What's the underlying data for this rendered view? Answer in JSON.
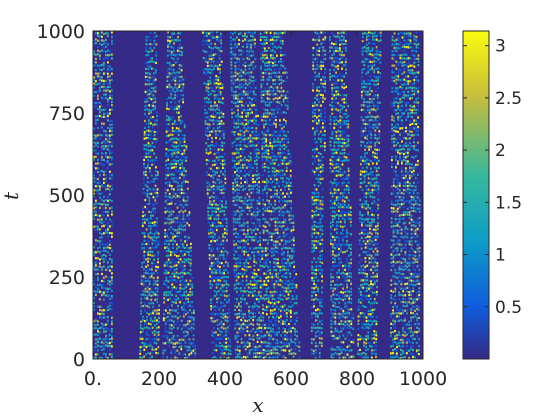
{
  "chart_data": {
    "type": "heatmap",
    "title": "",
    "xlabel": "x",
    "ylabel": "t",
    "xlim": [
      0,
      1000
    ],
    "ylim": [
      0,
      1000
    ],
    "x_ticks": [
      {
        "value": 0,
        "label": "0."
      },
      {
        "value": 200,
        "label": "200"
      },
      {
        "value": 400,
        "label": "400"
      },
      {
        "value": 600,
        "label": "600"
      },
      {
        "value": 800,
        "label": "800"
      },
      {
        "value": 1000,
        "label": "1000"
      }
    ],
    "y_ticks": [
      {
        "value": 0,
        "label": "0"
      },
      {
        "value": 250,
        "label": "250"
      },
      {
        "value": 500,
        "label": "500"
      },
      {
        "value": 750,
        "label": "750"
      },
      {
        "value": 1000,
        "label": "1000"
      }
    ],
    "colorbar": {
      "colormap": "parula",
      "range": [
        0,
        3.14
      ],
      "ticks": [
        {
          "value": 0.5,
          "label": "0.5"
        },
        {
          "value": 1,
          "label": "1"
        },
        {
          "value": 1.5,
          "label": "1.5"
        },
        {
          "value": 2,
          "label": "2"
        },
        {
          "value": 2.5,
          "label": "2.5"
        },
        {
          "value": 3,
          "label": "3"
        }
      ]
    },
    "background_value": 0,
    "colors": {
      "background": "#352a87",
      "low": "#0f5cdd",
      "mid": "#0d9dc7",
      "high": "#37b89d",
      "peak": "#c7bd3c",
      "max": "#f9fb0e"
    },
    "turbulent_bands": [
      {
        "x_start": [
          0,
          0
        ],
        "x_end": [
          60,
          60
        ],
        "t": [
          0,
          1000
        ]
      },
      {
        "x_start": [
          140,
          160
        ],
        "x_end": [
          200,
          190
        ],
        "t": [
          0,
          1000
        ]
      },
      {
        "x_start": [
          210,
          225
        ],
        "x_end": [
          310,
          265
        ],
        "t": [
          0,
          1000
        ]
      },
      {
        "x_start": [
          360,
          330
        ],
        "x_end": [
          420,
          390
        ],
        "t": [
          0,
          1000
        ]
      },
      {
        "x_start": [
          430,
          415
        ],
        "x_end": [
          520,
          490
        ],
        "t": [
          0,
          1000
        ]
      },
      {
        "x_start": [
          520,
          505
        ],
        "x_end": [
          625,
          580
        ],
        "t": [
          0,
          1000
        ]
      },
      {
        "x_start": [
          660,
          665
        ],
        "x_end": [
          690,
          705
        ],
        "t": [
          0,
          1000
        ]
      },
      {
        "x_start": [
          720,
          715
        ],
        "x_end": [
          790,
          765
        ],
        "t": [
          0,
          1000
        ]
      },
      {
        "x_start": [
          800,
          815
        ],
        "x_end": [
          860,
          870
        ],
        "t": [
          0,
          1000
        ]
      },
      {
        "x_start": [
          900,
          905
        ],
        "x_end": [
          990,
          985
        ],
        "t": [
          0,
          1000
        ]
      }
    ]
  }
}
